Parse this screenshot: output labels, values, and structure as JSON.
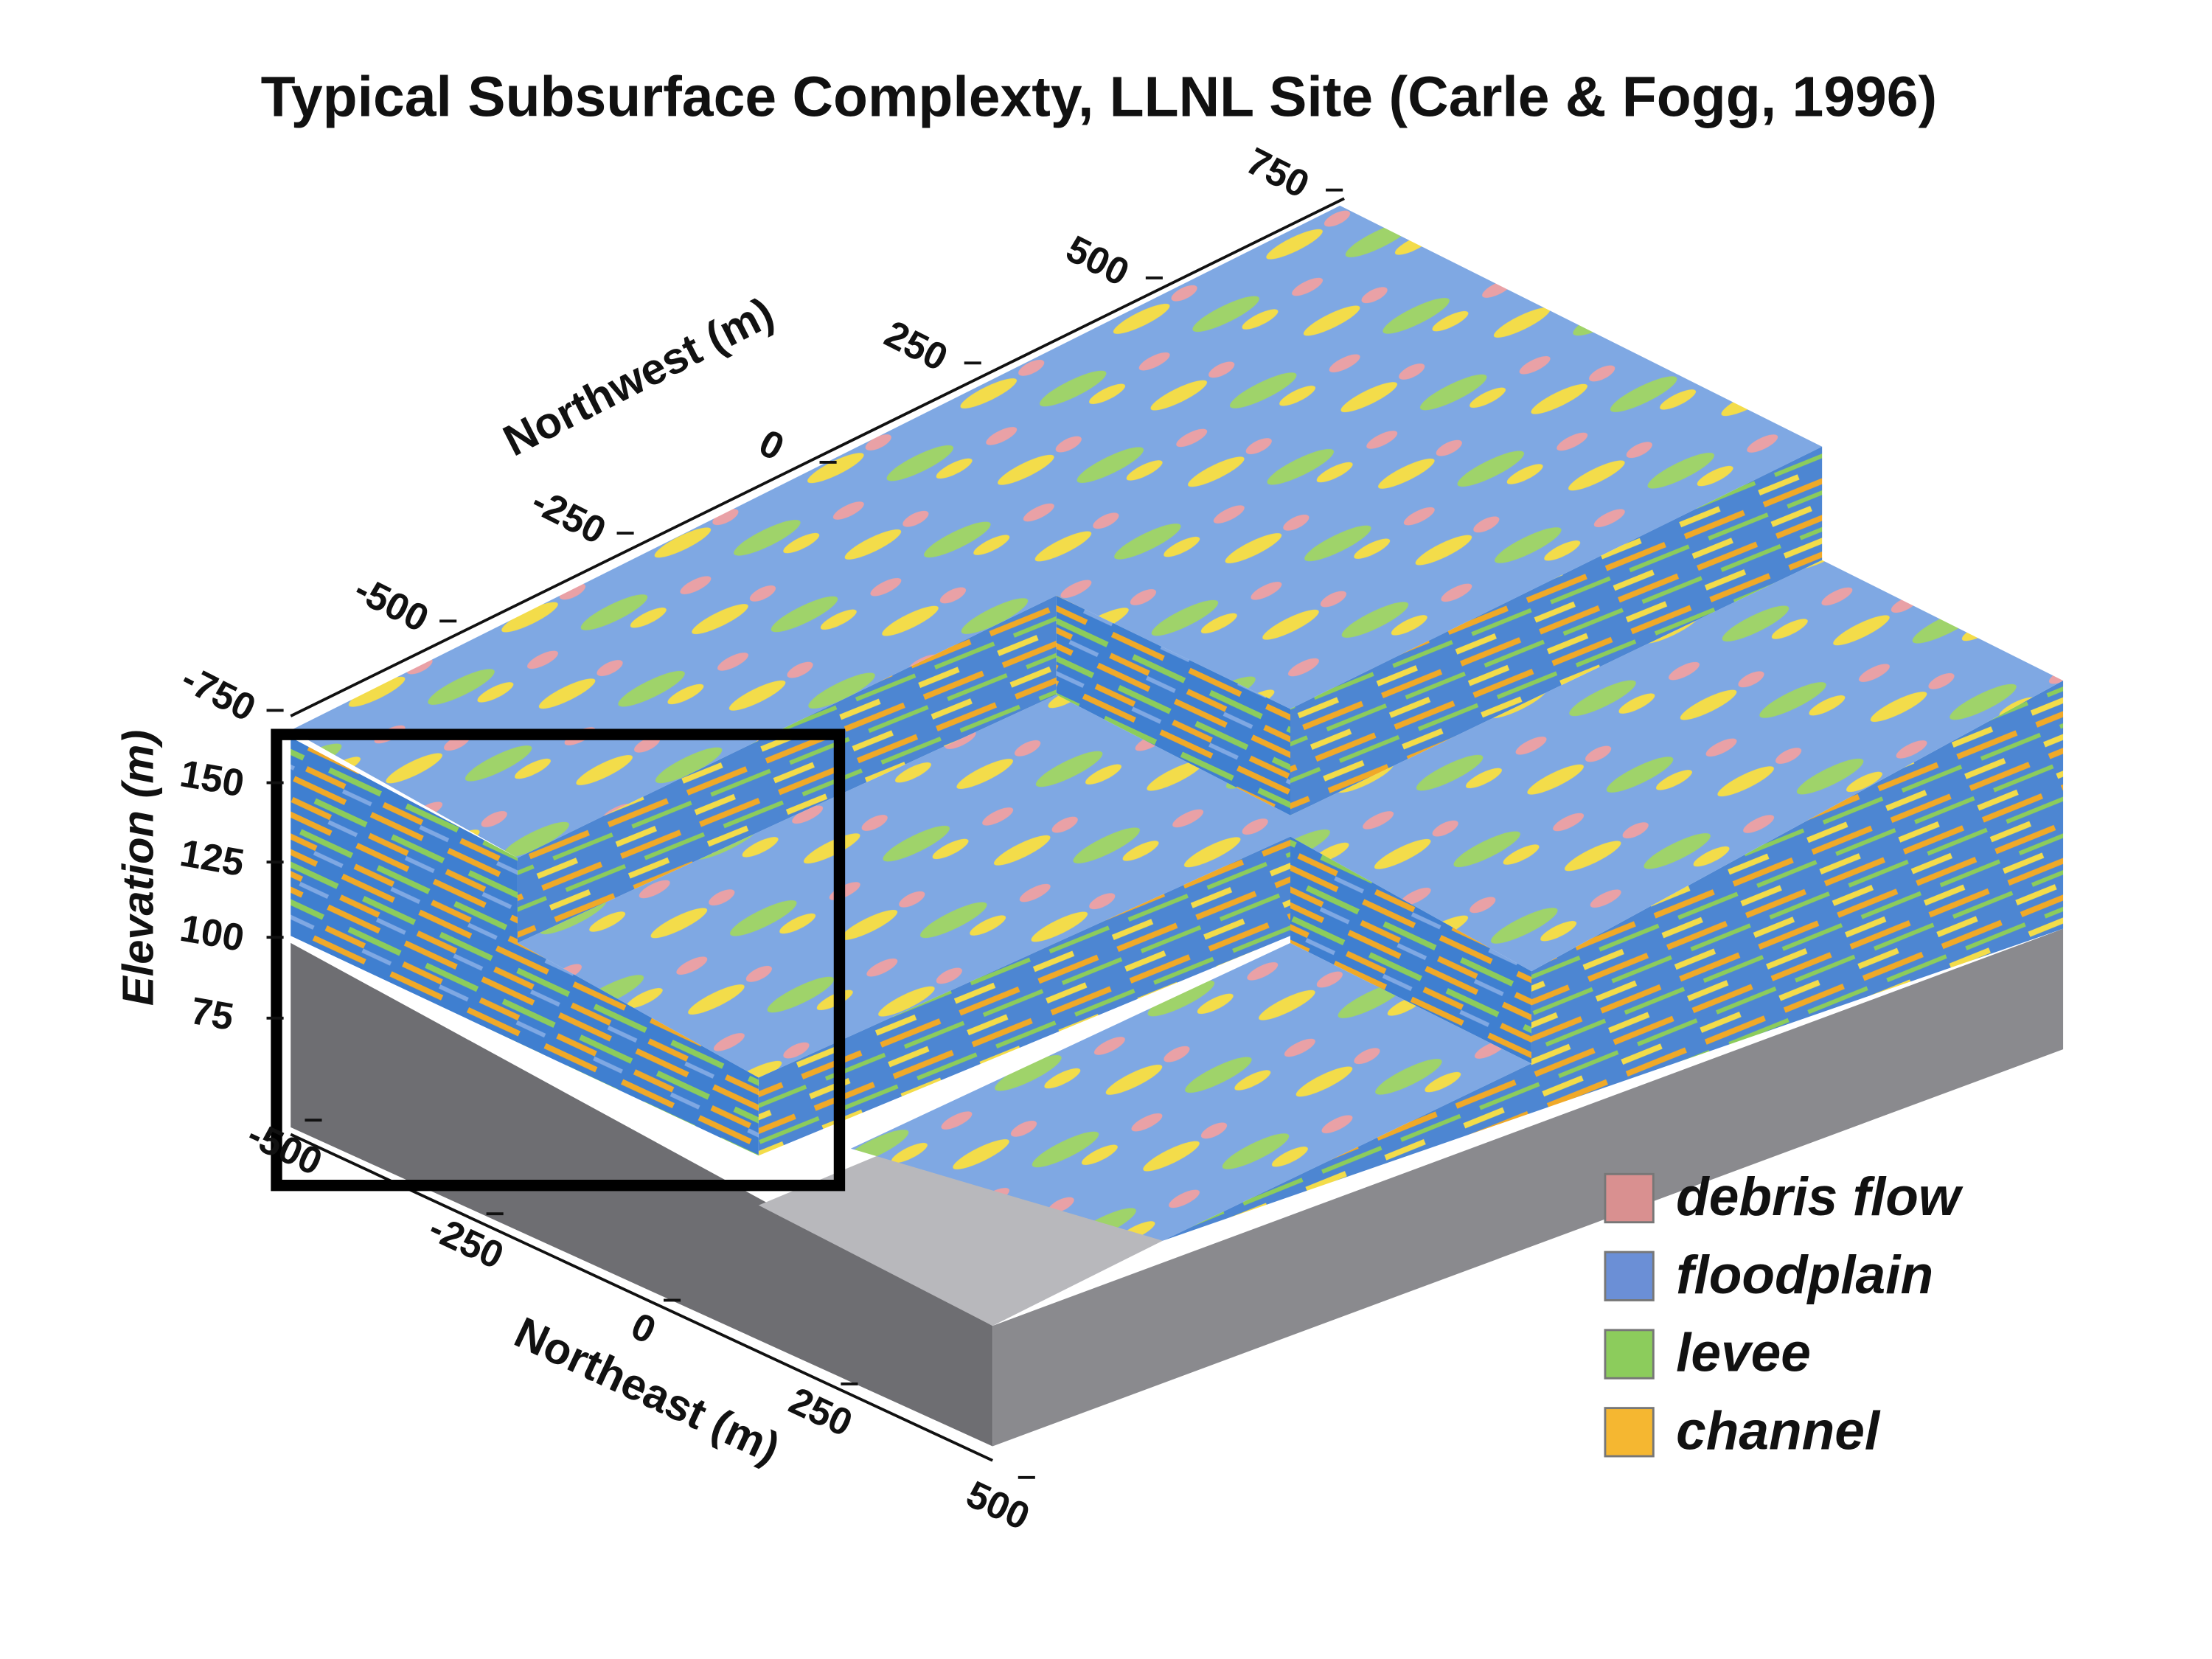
{
  "title": "Typical Subsurface Complexty, LLNL Site (Carle & Fogg, 1996)",
  "axes": {
    "northwest": {
      "label": "Northwest (m)",
      "ticks": [
        "-750",
        "-500",
        "-250",
        "0",
        "250",
        "500",
        "750"
      ]
    },
    "elevation": {
      "label": "Elevation (m)",
      "ticks": [
        "150",
        "125",
        "100",
        "75"
      ]
    },
    "northeast": {
      "label": "Northeast (m)",
      "ticks": [
        "-500",
        "-250",
        "0",
        "250",
        "500"
      ]
    }
  },
  "legend": {
    "items": [
      {
        "label": "debris flow",
        "color": "#d99090"
      },
      {
        "label": "floodplain",
        "color": "#6b8fd6"
      },
      {
        "label": "levee",
        "color": "#8ccc5c"
      },
      {
        "label": "channel",
        "color": "#f5b731"
      }
    ]
  }
}
